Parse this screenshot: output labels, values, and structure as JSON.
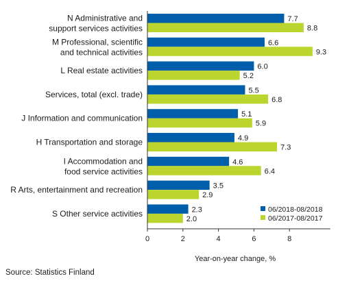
{
  "chart_data": {
    "type": "bar",
    "orientation": "horizontal",
    "categories": [
      [
        "N Administrative and",
        "support services activities"
      ],
      [
        "M Professional, scientific",
        "and technical activities"
      ],
      [
        "L Real estate activities"
      ],
      [
        "Services, total (excl. trade)"
      ],
      [
        "J Information and communication"
      ],
      [
        "H Transportation and storage"
      ],
      [
        "I Accommodation and",
        "food service activities"
      ],
      [
        "R Arts, entertainment and recreation"
      ],
      [
        "S Other service activities"
      ]
    ],
    "series": [
      {
        "name": "06/2018-08/2018",
        "color": "#005eaa",
        "values": [
          7.7,
          6.6,
          6.0,
          5.5,
          5.1,
          4.9,
          4.6,
          3.5,
          2.3
        ]
      },
      {
        "name": "06/2017-08/2017",
        "color": "#bcd52e",
        "values": [
          8.8,
          9.3,
          5.2,
          6.8,
          5.9,
          7.3,
          6.4,
          2.9,
          2.0
        ]
      }
    ],
    "xlabel": "Year-on-year change, %",
    "xticks": [
      0,
      2,
      4,
      6,
      8
    ],
    "xlim": [
      0,
      10.3
    ],
    "grid": false,
    "legend_position": "bottom-right"
  },
  "source": "Source: Statistics Finland"
}
